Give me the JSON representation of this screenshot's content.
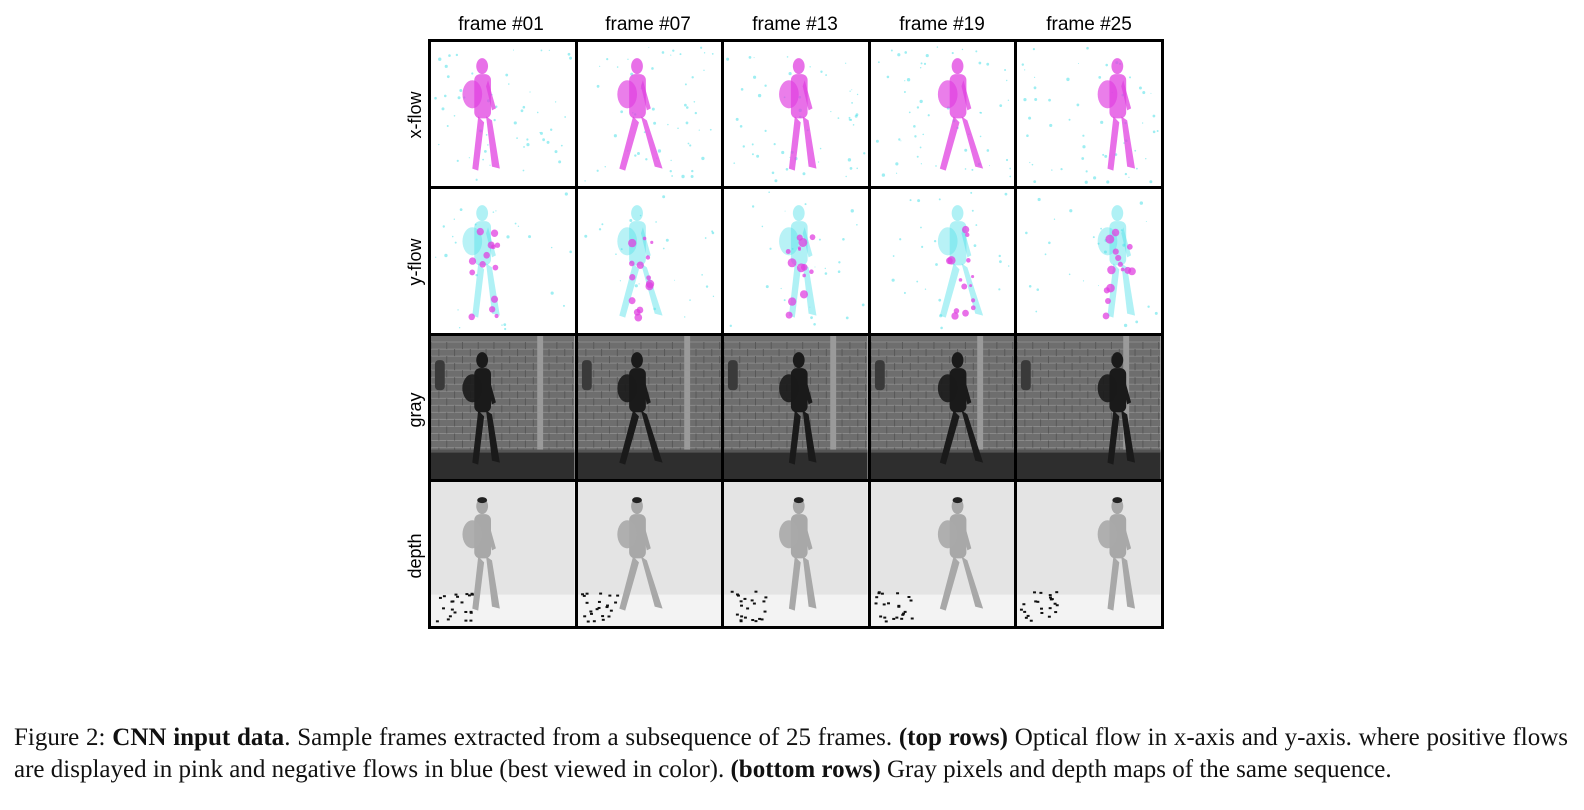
{
  "figure": {
    "columns": [
      {
        "label": "frame #01",
        "body_x": 48,
        "step": 0
      },
      {
        "label": "frame #07",
        "body_x": 56,
        "step": 1
      },
      {
        "label": "frame #13",
        "body_x": 72,
        "step": 0
      },
      {
        "label": "frame #19",
        "body_x": 84,
        "step": 1
      },
      {
        "label": "frame #25",
        "body_x": 98,
        "step": 0
      }
    ],
    "rows": [
      {
        "label": "x-flow",
        "kind": "xflow"
      },
      {
        "label": "y-flow",
        "kind": "yflow"
      },
      {
        "label": "gray",
        "kind": "gray"
      },
      {
        "label": "depth",
        "kind": "depth"
      }
    ],
    "colors": {
      "positive_flow": "#e040e0",
      "negative_flow": "#4fe0e8",
      "border": "#000000"
    }
  },
  "caption": {
    "prefix": "Figure 2: ",
    "title": "CNN input data",
    "sentence1": ". Sample frames extracted from a subsequence of 25 frames. ",
    "top_label": "(top rows)",
    "sentence2": " Optical flow in x-axis and y-axis. where positive flows are displayed in pink and negative flows in blue (best viewed in color). ",
    "bottom_label": "(bottom rows)",
    "sentence3": " Gray pixels and depth maps of the same sequence."
  }
}
